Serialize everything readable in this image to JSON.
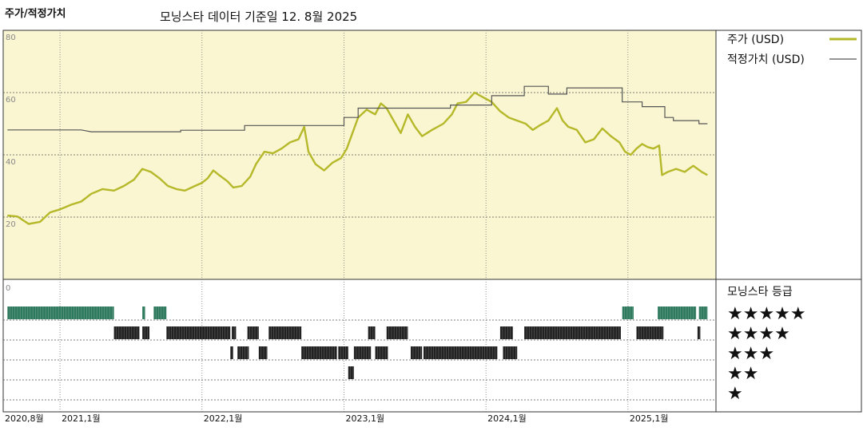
{
  "header": {
    "title": "주가/적정가치",
    "subtitle": "모닝스타 데이터 기준일 12. 8월 2025"
  },
  "colors": {
    "price": "#b5b829",
    "fair_value": "#555555",
    "panel_bg": "#faf6d2",
    "rating_green": "#2f7a5e",
    "rating_dark": "#222222"
  },
  "chart_data": {
    "type": "line",
    "ylim": [
      0,
      80
    ],
    "y_ticks": [
      "80",
      "60",
      "40",
      "20"
    ],
    "x_ticks": [
      "2020,8월",
      "2021,1월",
      "2022,1월",
      "2023,1월",
      "2024,1월",
      "2025,1월"
    ],
    "bottom_left_label": "0",
    "series": [
      {
        "name": "주가 (USD)",
        "points": [
          [
            2020.63,
            20.5
          ],
          [
            2020.7,
            20.2
          ],
          [
            2020.78,
            17.8
          ],
          [
            2020.86,
            18.5
          ],
          [
            2020.93,
            21.5
          ],
          [
            2021.0,
            22.5
          ],
          [
            2021.08,
            24.0
          ],
          [
            2021.15,
            25.0
          ],
          [
            2021.22,
            27.5
          ],
          [
            2021.3,
            29.0
          ],
          [
            2021.38,
            28.5
          ],
          [
            2021.45,
            30.0
          ],
          [
            2021.52,
            32.0
          ],
          [
            2021.58,
            35.5
          ],
          [
            2021.64,
            34.5
          ],
          [
            2021.7,
            32.5
          ],
          [
            2021.76,
            30.0
          ],
          [
            2021.82,
            29.0
          ],
          [
            2021.88,
            28.5
          ],
          [
            2021.95,
            30.0
          ],
          [
            2022.0,
            31.0
          ],
          [
            2022.04,
            32.5
          ],
          [
            2022.08,
            35.0
          ],
          [
            2022.12,
            33.5
          ],
          [
            2022.18,
            31.5
          ],
          [
            2022.22,
            29.5
          ],
          [
            2022.28,
            30.0
          ],
          [
            2022.34,
            33.0
          ],
          [
            2022.38,
            37.0
          ],
          [
            2022.44,
            41.0
          ],
          [
            2022.5,
            40.5
          ],
          [
            2022.56,
            42.0
          ],
          [
            2022.62,
            44.0
          ],
          [
            2022.68,
            45.0
          ],
          [
            2022.72,
            49.0
          ],
          [
            2022.75,
            41.0
          ],
          [
            2022.8,
            37.0
          ],
          [
            2022.86,
            35.0
          ],
          [
            2022.92,
            37.5
          ],
          [
            2022.98,
            39.0
          ],
          [
            2023.02,
            42.0
          ],
          [
            2023.06,
            47.0
          ],
          [
            2023.1,
            52.0
          ],
          [
            2023.16,
            54.5
          ],
          [
            2023.22,
            53.0
          ],
          [
            2023.26,
            56.5
          ],
          [
            2023.3,
            55.0
          ],
          [
            2023.35,
            51.0
          ],
          [
            2023.4,
            47.0
          ],
          [
            2023.45,
            53.0
          ],
          [
            2023.5,
            49.0
          ],
          [
            2023.55,
            46.0
          ],
          [
            2023.62,
            48.0
          ],
          [
            2023.7,
            50.0
          ],
          [
            2023.76,
            53.0
          ],
          [
            2023.8,
            56.5
          ],
          [
            2023.86,
            57.0
          ],
          [
            2023.92,
            60.0
          ],
          [
            2023.98,
            58.5
          ],
          [
            2024.04,
            57.0
          ],
          [
            2024.1,
            54.0
          ],
          [
            2024.16,
            52.0
          ],
          [
            2024.22,
            51.0
          ],
          [
            2024.28,
            50.0
          ],
          [
            2024.33,
            48.0
          ],
          [
            2024.38,
            49.5
          ],
          [
            2024.44,
            51.0
          ],
          [
            2024.5,
            55.0
          ],
          [
            2024.54,
            51.0
          ],
          [
            2024.58,
            49.0
          ],
          [
            2024.64,
            48.0
          ],
          [
            2024.7,
            44.0
          ],
          [
            2024.76,
            45.0
          ],
          [
            2024.82,
            48.5
          ],
          [
            2024.88,
            46.0
          ],
          [
            2024.94,
            44.0
          ],
          [
            2024.98,
            41.0
          ],
          [
            2025.02,
            40.0
          ],
          [
            2025.06,
            42.0
          ],
          [
            2025.1,
            43.5
          ],
          [
            2025.14,
            42.5
          ],
          [
            2025.18,
            42.0
          ],
          [
            2025.22,
            43.0
          ],
          [
            2025.24,
            33.5
          ],
          [
            2025.28,
            34.5
          ],
          [
            2025.34,
            35.5
          ],
          [
            2025.4,
            34.5
          ],
          [
            2025.46,
            36.5
          ],
          [
            2025.52,
            34.5
          ],
          [
            2025.56,
            33.5
          ]
        ]
      },
      {
        "name": "적정가치 (USD)",
        "points": [
          [
            2020.63,
            48.0
          ],
          [
            2021.15,
            48.0
          ],
          [
            2021.22,
            47.4
          ],
          [
            2021.85,
            47.4
          ],
          [
            2021.85,
            47.9
          ],
          [
            2022.3,
            47.9
          ],
          [
            2022.3,
            49.4
          ],
          [
            2023.0,
            49.4
          ],
          [
            2023.0,
            52.0
          ],
          [
            2023.1,
            52.0
          ],
          [
            2023.1,
            55.0
          ],
          [
            2023.75,
            55.0
          ],
          [
            2023.75,
            56.0
          ],
          [
            2024.04,
            56.0
          ],
          [
            2024.04,
            59.0
          ],
          [
            2024.27,
            59.0
          ],
          [
            2024.27,
            62.0
          ],
          [
            2024.44,
            62.0
          ],
          [
            2024.44,
            59.5
          ],
          [
            2024.57,
            59.5
          ],
          [
            2024.57,
            61.5
          ],
          [
            2024.96,
            61.5
          ],
          [
            2024.96,
            57.0
          ],
          [
            2025.1,
            57.0
          ],
          [
            2025.1,
            55.5
          ],
          [
            2025.26,
            55.5
          ],
          [
            2025.26,
            52.0
          ],
          [
            2025.32,
            52.0
          ],
          [
            2025.32,
            51.0
          ],
          [
            2025.5,
            51.0
          ],
          [
            2025.5,
            50.0
          ],
          [
            2025.56,
            50.0
          ]
        ]
      }
    ],
    "x_range": [
      2020.6,
      2025.62
    ]
  },
  "rating": {
    "title": "모닝스타 등급",
    "levels": [
      "★★★★★",
      "★★★★",
      "★★★",
      "★★",
      "★"
    ],
    "segments": [
      {
        "level": 5,
        "start": 2020.63,
        "end": 2021.38
      },
      {
        "level": 5,
        "start": 2021.58,
        "end": 2021.6
      },
      {
        "level": 5,
        "start": 2021.66,
        "end": 2021.75
      },
      {
        "level": 5,
        "start": 2024.96,
        "end": 2025.04
      },
      {
        "level": 5,
        "start": 2025.21,
        "end": 2025.48
      },
      {
        "level": 5,
        "start": 2025.5,
        "end": 2025.56
      },
      {
        "level": 4,
        "start": 2021.38,
        "end": 2021.56
      },
      {
        "level": 4,
        "start": 2021.58,
        "end": 2021.63
      },
      {
        "level": 4,
        "start": 2021.75,
        "end": 2022.2
      },
      {
        "level": 4,
        "start": 2022.21,
        "end": 2022.24
      },
      {
        "level": 4,
        "start": 2022.32,
        "end": 2022.4
      },
      {
        "level": 4,
        "start": 2022.47,
        "end": 2022.7
      },
      {
        "level": 4,
        "start": 2023.17,
        "end": 2023.22
      },
      {
        "level": 4,
        "start": 2023.3,
        "end": 2023.45
      },
      {
        "level": 4,
        "start": 2024.1,
        "end": 2024.19
      },
      {
        "level": 4,
        "start": 2024.27,
        "end": 2024.95
      },
      {
        "level": 4,
        "start": 2025.06,
        "end": 2025.25
      },
      {
        "level": 4,
        "start": 2025.49,
        "end": 2025.51
      },
      {
        "level": 3,
        "start": 2022.2,
        "end": 2022.22
      },
      {
        "level": 3,
        "start": 2022.25,
        "end": 2022.33
      },
      {
        "level": 3,
        "start": 2022.4,
        "end": 2022.46
      },
      {
        "level": 3,
        "start": 2022.7,
        "end": 2022.95
      },
      {
        "level": 3,
        "start": 2022.96,
        "end": 2023.03
      },
      {
        "level": 3,
        "start": 2023.07,
        "end": 2023.19
      },
      {
        "level": 3,
        "start": 2023.22,
        "end": 2023.31
      },
      {
        "level": 3,
        "start": 2023.47,
        "end": 2023.55
      },
      {
        "level": 3,
        "start": 2023.56,
        "end": 2024.08
      },
      {
        "level": 3,
        "start": 2024.12,
        "end": 2024.22
      },
      {
        "level": 2,
        "start": 2023.03,
        "end": 2023.07
      }
    ]
  },
  "legend": {
    "price_label": "주가 (USD)",
    "fair_label": "적정가치 (USD)"
  }
}
